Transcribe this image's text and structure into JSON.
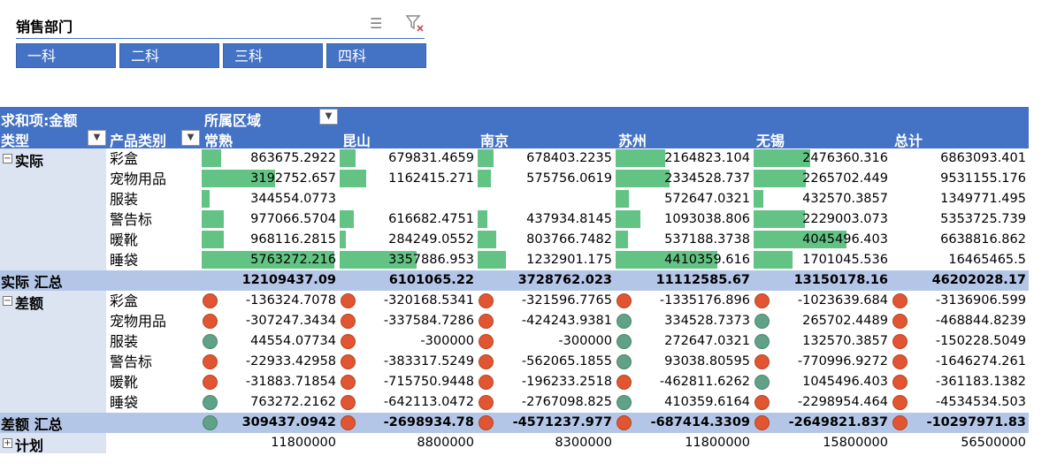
{
  "slicer": {
    "title": "销售部门",
    "buttons": [
      "一科",
      "二科",
      "三科",
      "四科"
    ]
  },
  "pivot": {
    "value_label": "求和项:金额",
    "column_field": "所属区域",
    "row_field_1": "类型",
    "row_field_2": "产品类别",
    "regions": [
      "常熟",
      "昆山",
      "南京",
      "苏州",
      "无锡",
      "总计"
    ],
    "actual": {
      "label": "实际",
      "rows": [
        {
          "category": "彩盒",
          "values": [
            "863675.2922",
            "679831.4659",
            "678403.2235",
            "2164823.104",
            "2476360.316",
            "6863093.401"
          ]
        },
        {
          "category": "宠物用品",
          "values": [
            "3192752.657",
            "1162415.271",
            "575756.0619",
            "2334528.737",
            "2265702.449",
            "9531155.176"
          ]
        },
        {
          "category": "服装",
          "values": [
            "344554.0773",
            "",
            "",
            "572647.0321",
            "432570.3857",
            "1349771.495"
          ]
        },
        {
          "category": "警告标",
          "values": [
            "977066.5704",
            "616682.4751",
            "437934.8145",
            "1093038.806",
            "2229003.073",
            "5353725.739"
          ]
        },
        {
          "category": "暖靴",
          "values": [
            "968116.2815",
            "284249.0552",
            "803766.7482",
            "537188.3738",
            "4045496.403",
            "6638816.862"
          ]
        },
        {
          "category": "睡袋",
          "values": [
            "5763272.216",
            "3357886.953",
            "1232901.175",
            "4410359.616",
            "1701045.536",
            "16465465.5"
          ]
        }
      ],
      "total_label": "实际 汇总",
      "totals": [
        "12109437.09",
        "6101065.22",
        "3728762.023",
        "11112585.67",
        "13150178.16",
        "46202028.17"
      ]
    },
    "diff": {
      "label": "差额",
      "rows": [
        {
          "category": "彩盒",
          "values": [
            "-136324.7078",
            "-320168.5341",
            "-321596.7765",
            "-1335176.896",
            "-1023639.684",
            "-3136906.599"
          ]
        },
        {
          "category": "宠物用品",
          "values": [
            "-307247.3434",
            "-337584.7286",
            "-424243.9381",
            "334528.7373",
            "265702.4489",
            "-468844.8239"
          ]
        },
        {
          "category": "服装",
          "values": [
            "44554.07734",
            "-300000",
            "-300000",
            "272647.0321",
            "132570.3857",
            "-150228.5049"
          ]
        },
        {
          "category": "警告标",
          "values": [
            "-22933.42958",
            "-383317.5249",
            "-562065.1855",
            "93038.80595",
            "-770996.9272",
            "-1646274.261"
          ]
        },
        {
          "category": "暖靴",
          "values": [
            "-31883.71854",
            "-715750.9448",
            "-196233.2518",
            "-462811.6262",
            "1045496.403",
            "-361183.1382"
          ]
        },
        {
          "category": "睡袋",
          "values": [
            "763272.2162",
            "-642113.0472",
            "-2767098.825",
            "410359.6164",
            "-2298954.464",
            "-4534534.503"
          ]
        }
      ],
      "total_label": "差额 汇总",
      "totals": [
        "309437.0942",
        "-2698934.78",
        "-4571237.977",
        "-687414.3309",
        "-2649821.837",
        "-10297971.83"
      ]
    },
    "plan": {
      "label": "计划",
      "values": [
        "11800000",
        "8800000",
        "8300000",
        "11800000",
        "15800000",
        "56500000"
      ]
    },
    "colors": {
      "header": "#4472c4",
      "subtotal": "#b4c6e7",
      "label_col": "#dce3f1",
      "bar": "#63c384",
      "dot_red": "#e15532",
      "dot_green": "#5fa288"
    }
  }
}
